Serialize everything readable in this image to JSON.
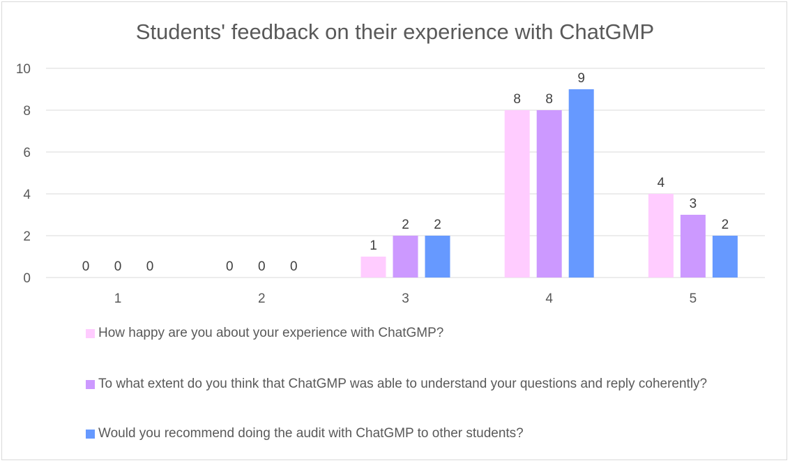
{
  "chart_data": {
    "type": "bar",
    "title": "Students' feedback on their experience with ChatGMP",
    "categories": [
      "1",
      "2",
      "3",
      "4",
      "5"
    ],
    "series": [
      {
        "name": "How happy are you about your experience with ChatGMP?",
        "values": [
          0,
          0,
          1,
          8,
          4
        ],
        "color": "#ffccff"
      },
      {
        "name": "To what extent do you think that ChatGMP was able to understand your questions and reply coherently?",
        "values": [
          0,
          0,
          2,
          8,
          3
        ],
        "color": "#cc99ff"
      },
      {
        "name": "Would you recommend doing the audit with ChatGMP to other students?",
        "values": [
          0,
          0,
          2,
          9,
          2
        ],
        "color": "#6699ff"
      }
    ],
    "ylim": [
      0,
      10
    ],
    "yticks": [
      "0",
      "2",
      "4",
      "6",
      "8",
      "10"
    ],
    "grid": true,
    "legend_position": "bottom",
    "xlabel": "",
    "ylabel": ""
  }
}
